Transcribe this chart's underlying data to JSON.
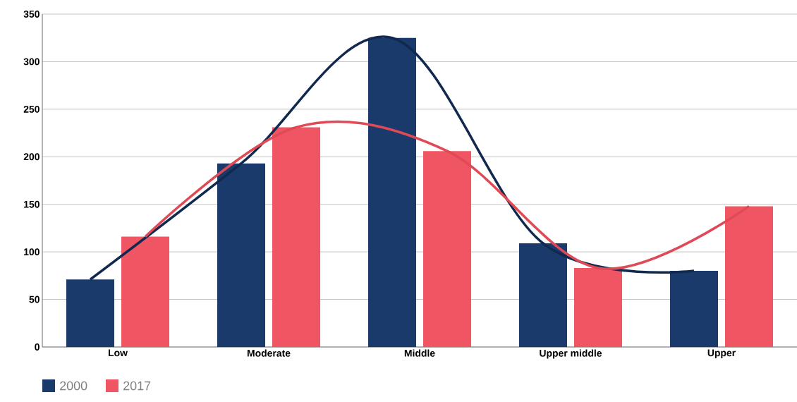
{
  "chart_data": {
    "type": "bar",
    "categories": [
      "Low",
      "Moderate",
      "Middle",
      "Upper middle",
      "Upper"
    ],
    "series": [
      {
        "name": "2000",
        "color": "#1a3a6c",
        "values": [
          71,
          193,
          325,
          109,
          80
        ]
      },
      {
        "name": "2017",
        "color": "#ef5562",
        "values": [
          116,
          231,
          206,
          83,
          148
        ]
      },
      {
        "type": "line",
        "color": "#12294f",
        "values": [
          71,
          193,
          325,
          109,
          80
        ]
      },
      {
        "type": "line",
        "color": "#e04a56",
        "values": [
          116,
          231,
          206,
          83,
          148
        ]
      }
    ],
    "ylim": [
      0,
      350
    ],
    "yticks": [
      0,
      50,
      100,
      150,
      200,
      250,
      300,
      350
    ],
    "grid": "y",
    "legend": "bottom left"
  }
}
